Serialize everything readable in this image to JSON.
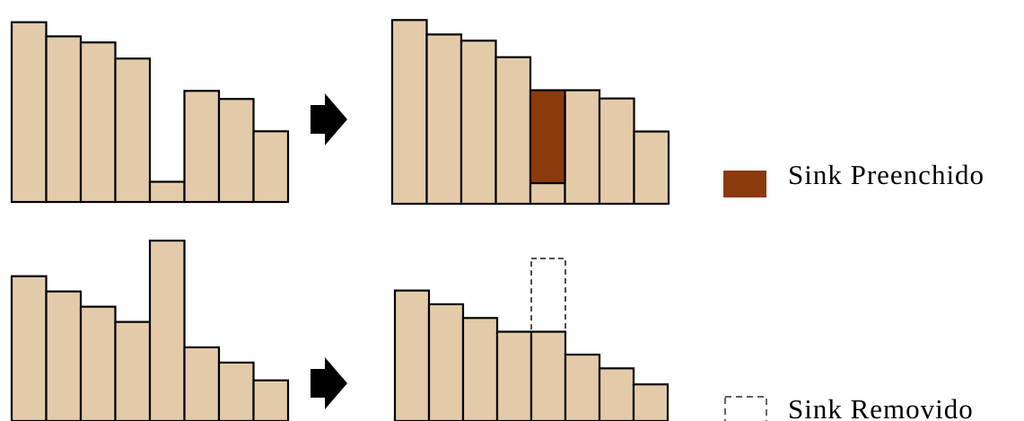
{
  "colors": {
    "bar_fill": "#E3CBAA",
    "bar_stroke": "#000000",
    "filled_sink": "#8B3A0E",
    "arrow": "#000000"
  },
  "legend": {
    "filled_label": "Sink Preenchido",
    "removed_label": "Sink Removido"
  },
  "panels": {
    "top_before": {
      "heights": [
        8.9,
        8.2,
        7.9,
        7.1,
        1.0,
        5.5,
        5.1,
        3.5
      ]
    },
    "top_after": {
      "heights": [
        8.9,
        8.2,
        7.9,
        7.1,
        1.0,
        5.5,
        5.1,
        3.5
      ],
      "filled_index": 4,
      "filled_to": 5.5
    },
    "bottom_before": {
      "heights": [
        5.7,
        5.1,
        4.5,
        3.9,
        7.1,
        2.9,
        2.3,
        1.6
      ]
    },
    "bottom_after": {
      "heights": [
        5.7,
        5.1,
        4.5,
        3.9,
        3.9,
        2.9,
        2.3,
        1.6
      ],
      "removed_index": 4,
      "removed_from": 7.1
    }
  }
}
